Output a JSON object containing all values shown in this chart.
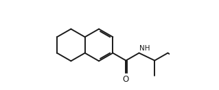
{
  "bg_color": "#ffffff",
  "line_color": "#1a1a1a",
  "line_width": 1.4,
  "fig_width": 3.19,
  "fig_height": 1.32,
  "dpi": 100,
  "font_size_NH": 7.5,
  "font_size_O": 8.5
}
